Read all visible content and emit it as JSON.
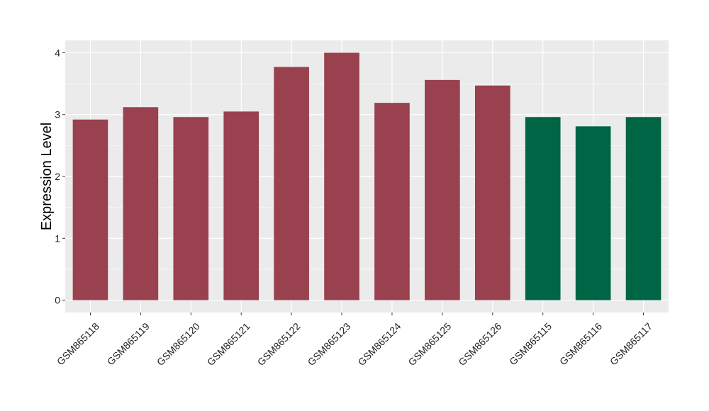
{
  "chart_data": {
    "type": "bar",
    "ylabel": "Expression Level",
    "xlabel": "",
    "title": "",
    "ylim": [
      -0.2,
      4.2
    ],
    "yticks": [
      0,
      1,
      2,
      3,
      4
    ],
    "grid": true,
    "legend": "none",
    "categories": [
      "GSM865118",
      "GSM865119",
      "GSM865120",
      "GSM865121",
      "GSM865122",
      "GSM865123",
      "GSM865124",
      "GSM865125",
      "GSM865126",
      "GSM865115",
      "GSM865116",
      "GSM865117"
    ],
    "values": [
      2.92,
      3.12,
      2.96,
      3.05,
      3.77,
      4.0,
      3.19,
      3.56,
      3.47,
      2.96,
      2.81,
      2.96
    ],
    "groups": [
      "a",
      "a",
      "a",
      "a",
      "a",
      "a",
      "a",
      "a",
      "a",
      "b",
      "b",
      "b"
    ],
    "colors": {
      "a": "#99414F",
      "b": "#006544"
    },
    "panel_background": "#EBEBEB",
    "grid_color": "#FFFFFF"
  }
}
